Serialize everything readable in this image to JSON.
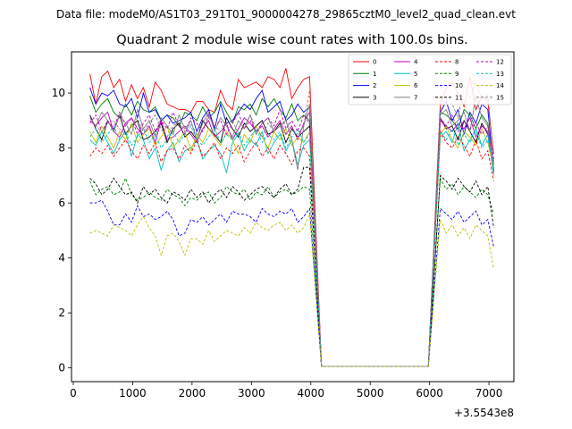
{
  "chart_data": {
    "type": "line",
    "suptitle": "Data file: modeM0/AS1T03_291T01_9000004278_29865cztM0_level2_quad_clean.evt",
    "title": "Quadrant 2 module wise count rates with 100.0s bins.",
    "xlabel": "",
    "ylabel": "",
    "x_offset_label": "+3.5543e8",
    "xlim": [
      -30,
      7420
    ],
    "ylim": [
      -0.5,
      11.5
    ],
    "xticks": [
      0,
      1000,
      2000,
      3000,
      4000,
      5000,
      6000,
      7000
    ],
    "yticks": [
      0,
      2,
      4,
      6,
      8,
      10
    ],
    "legend_position": "upper-right",
    "x": [
      280,
      380,
      480,
      580,
      680,
      780,
      880,
      980,
      1080,
      1180,
      1280,
      1380,
      1480,
      1580,
      1680,
      1780,
      1880,
      1980,
      2080,
      2180,
      2280,
      2380,
      2480,
      2580,
      2680,
      2780,
      2880,
      2980,
      3080,
      3180,
      3280,
      3380,
      3480,
      3580,
      3680,
      3780,
      3880,
      3980,
      4180,
      4280,
      4380,
      4480,
      4580,
      4680,
      4780,
      4880,
      4980,
      5080,
      5180,
      5280,
      5380,
      5480,
      5580,
      5680,
      5780,
      5880,
      5980,
      6180,
      6280,
      6380,
      6480,
      6580,
      6680,
      6780,
      6880,
      6980,
      7080
    ],
    "series": [
      {
        "name": "0",
        "color": "#ff0000",
        "style": "solid",
        "values": [
          10.7,
          9.6,
          10.6,
          10.8,
          10.2,
          10.5,
          9.7,
          10.3,
          9.8,
          10.2,
          9.5,
          10.4,
          10.1,
          9.6,
          9.5,
          9.4,
          9.4,
          9.3,
          9.7,
          9.7,
          9.4,
          9.3,
          10.1,
          9.6,
          9.4,
          10.5,
          10.2,
          10.3,
          10.4,
          10.2,
          10.6,
          10.5,
          10.2,
          10.9,
          9.8,
          10.2,
          10.5,
          10.6,
          0.05,
          0.05,
          0.05,
          0.05,
          0.05,
          0.05,
          0.05,
          0.05,
          0.05,
          0.05,
          0.05,
          0.05,
          0.05,
          0.05,
          0.05,
          0.05,
          0.05,
          0.05,
          0.05,
          9.6,
          10.2,
          10.4,
          10.0,
          9.5,
          10.6,
          9.4,
          9.9,
          9.7,
          7.8
        ]
      },
      {
        "name": "1",
        "color": "#008000",
        "style": "solid",
        "values": [
          9.9,
          9.3,
          9.6,
          9.8,
          9.3,
          9.1,
          9.6,
          9.2,
          9.7,
          9.4,
          9.3,
          9.5,
          9.0,
          9.2,
          9.1,
          8.8,
          9.3,
          9.2,
          9.0,
          9.5,
          9.1,
          9.3,
          9.7,
          9.3,
          8.9,
          9.5,
          9.4,
          9.6,
          9.2,
          9.8,
          9.5,
          9.8,
          9.4,
          9.1,
          9.6,
          9.0,
          9.2,
          9.0,
          0.05,
          0.05,
          0.05,
          0.05,
          0.05,
          0.05,
          0.05,
          0.05,
          0.05,
          0.05,
          0.05,
          0.05,
          0.05,
          0.05,
          0.05,
          0.05,
          0.05,
          0.05,
          0.05,
          9.3,
          9.2,
          9.0,
          8.7,
          9.4,
          9.2,
          8.7,
          9.2,
          8.9,
          7.4
        ]
      },
      {
        "name": "2",
        "color": "#0000ff",
        "style": "solid",
        "values": [
          10.2,
          9.6,
          10.0,
          9.9,
          10.1,
          9.6,
          9.5,
          9.8,
          9.1,
          10.0,
          9.3,
          9.4,
          9.0,
          9.2,
          8.9,
          9.0,
          9.1,
          9.3,
          8.6,
          9.1,
          9.4,
          8.7,
          9.6,
          8.9,
          9.0,
          9.3,
          9.6,
          9.4,
          9.8,
          10.1,
          9.3,
          9.5,
          9.7,
          9.0,
          9.2,
          9.6,
          9.3,
          9.5,
          0.05,
          0.05,
          0.05,
          0.05,
          0.05,
          0.05,
          0.05,
          0.05,
          0.05,
          0.05,
          0.05,
          0.05,
          0.05,
          0.05,
          0.05,
          0.05,
          0.05,
          0.05,
          0.05,
          9.3,
          9.7,
          9.0,
          9.4,
          8.5,
          9.3,
          8.9,
          9.6,
          9.4,
          7.2
        ]
      },
      {
        "name": "3",
        "color": "#000000",
        "style": "solid",
        "values": [
          9.2,
          8.7,
          8.3,
          9.0,
          8.6,
          9.2,
          8.5,
          8.8,
          9.0,
          8.3,
          8.4,
          8.6,
          8.9,
          8.2,
          8.7,
          8.9,
          8.4,
          8.6,
          8.3,
          9.0,
          8.7,
          8.5,
          8.2,
          9.1,
          8.7,
          8.4,
          8.9,
          8.6,
          8.8,
          9.0,
          8.5,
          8.6,
          8.9,
          8.2,
          8.7,
          8.4,
          8.6,
          8.8,
          0.05,
          0.05,
          0.05,
          0.05,
          0.05,
          0.05,
          0.05,
          0.05,
          0.05,
          0.05,
          0.05,
          0.05,
          0.05,
          0.05,
          0.05,
          0.05,
          0.05,
          0.05,
          0.05,
          9.1,
          8.7,
          8.8,
          8.3,
          9.0,
          8.6,
          8.2,
          8.9,
          8.5,
          7.1
        ]
      },
      {
        "name": "4",
        "color": "#bf00bf",
        "style": "solid",
        "values": [
          9.0,
          8.8,
          9.1,
          9.3,
          8.6,
          8.4,
          8.9,
          9.1,
          8.7,
          8.5,
          8.8,
          8.2,
          9.0,
          8.3,
          8.4,
          8.6,
          8.8,
          8.5,
          8.2,
          8.7,
          9.0,
          8.4,
          8.6,
          8.9,
          8.3,
          8.7,
          9.1,
          8.9,
          8.6,
          8.8,
          8.4,
          8.7,
          9.0,
          8.5,
          8.8,
          8.3,
          8.9,
          9.3,
          0.05,
          0.05,
          0.05,
          0.05,
          0.05,
          0.05,
          0.05,
          0.05,
          0.05,
          0.05,
          0.05,
          0.05,
          0.05,
          0.05,
          0.05,
          0.05,
          0.05,
          0.05,
          0.05,
          9.0,
          8.8,
          8.6,
          8.9,
          8.7,
          9.1,
          8.4,
          8.8,
          8.6,
          7.5
        ]
      },
      {
        "name": "5",
        "color": "#00bfbf",
        "style": "solid",
        "values": [
          8.3,
          8.1,
          8.6,
          8.2,
          7.8,
          8.3,
          8.6,
          7.7,
          8.5,
          8.3,
          7.6,
          8.0,
          7.2,
          7.9,
          8.2,
          7.5,
          7.9,
          8.0,
          8.3,
          7.6,
          7.9,
          8.1,
          7.8,
          7.1,
          8.2,
          8.5,
          7.9,
          8.3,
          8.1,
          8.6,
          7.8,
          8.2,
          8.5,
          7.9,
          8.3,
          7.4,
          8.1,
          8.3,
          0.05,
          0.05,
          0.05,
          0.05,
          0.05,
          0.05,
          0.05,
          0.05,
          0.05,
          0.05,
          0.05,
          0.05,
          0.05,
          0.05,
          0.05,
          0.05,
          0.05,
          0.05,
          0.05,
          8.4,
          8.6,
          8.2,
          8.9,
          7.9,
          8.3,
          8.7,
          8.1,
          8.5,
          7.0
        ]
      },
      {
        "name": "6",
        "color": "#bfbf00",
        "style": "solid",
        "values": [
          8.6,
          8.2,
          8.8,
          8.4,
          8.0,
          8.6,
          8.3,
          8.9,
          8.2,
          8.5,
          8.7,
          8.1,
          8.4,
          8.8,
          8.0,
          8.3,
          8.6,
          7.9,
          8.5,
          8.2,
          8.7,
          8.4,
          8.1,
          8.6,
          8.3,
          7.8,
          8.5,
          8.2,
          8.8,
          8.4,
          8.0,
          8.6,
          8.3,
          8.7,
          8.1,
          8.4,
          8.2,
          8.6,
          0.05,
          0.05,
          0.05,
          0.05,
          0.05,
          0.05,
          0.05,
          0.05,
          0.05,
          0.05,
          0.05,
          0.05,
          0.05,
          0.05,
          0.05,
          0.05,
          0.05,
          0.05,
          0.05,
          8.5,
          8.8,
          8.3,
          8.0,
          8.6,
          8.4,
          8.1,
          8.7,
          8.2,
          7.3
        ]
      },
      {
        "name": "7",
        "color": "#808080",
        "style": "solid",
        "values": [
          9.1,
          8.8,
          9.3,
          9.0,
          8.6,
          9.2,
          8.9,
          8.5,
          9.4,
          8.7,
          9.0,
          8.4,
          9.1,
          8.8,
          8.5,
          9.2,
          8.7,
          9.0,
          8.3,
          8.9,
          9.3,
          8.6,
          9.1,
          8.8,
          8.4,
          9.0,
          8.7,
          9.2,
          8.5,
          8.9,
          9.1,
          8.6,
          8.8,
          9.0,
          8.3,
          7.2,
          8.8,
          9.6,
          0.05,
          0.05,
          0.05,
          0.05,
          0.05,
          0.05,
          0.05,
          0.05,
          0.05,
          0.05,
          0.05,
          0.05,
          0.05,
          0.05,
          0.05,
          0.05,
          0.05,
          0.05,
          0.05,
          9.2,
          9.4,
          8.8,
          9.0,
          9.3,
          8.6,
          9.9,
          9.1,
          8.8,
          7.4
        ]
      },
      {
        "name": "8",
        "color": "#ff0000",
        "style": "dashed",
        "values": [
          7.7,
          8.0,
          7.8,
          8.1,
          7.7,
          8.0,
          8.3,
          7.9,
          7.6,
          8.1,
          7.8,
          8.2,
          7.5,
          7.9,
          8.0,
          7.6,
          8.1,
          7.8,
          8.3,
          7.7,
          7.9,
          8.2,
          7.6,
          8.0,
          7.8,
          8.1,
          7.5,
          7.9,
          8.2,
          7.7,
          8.0,
          7.6,
          8.1,
          7.8,
          7.4,
          7.9,
          8.0,
          7.7,
          0.05,
          0.05,
          0.05,
          0.05,
          0.05,
          0.05,
          0.05,
          0.05,
          0.05,
          0.05,
          0.05,
          0.05,
          0.05,
          0.05,
          0.05,
          0.05,
          0.05,
          0.05,
          0.05,
          8.6,
          8.2,
          8.0,
          8.4,
          8.1,
          7.7,
          8.3,
          7.6,
          7.9,
          6.8
        ]
      },
      {
        "name": "9",
        "color": "#008000",
        "style": "dashed",
        "values": [
          6.8,
          6.3,
          6.5,
          6.6,
          6.3,
          6.4,
          6.9,
          6.3,
          6.1,
          6.2,
          6.4,
          6.2,
          6.1,
          6.5,
          6.3,
          6.2,
          5.9,
          6.2,
          6.1,
          6.3,
          6.4,
          6.0,
          6.2,
          6.6,
          6.4,
          6.3,
          6.5,
          6.1,
          6.4,
          6.3,
          6.6,
          6.2,
          6.4,
          6.5,
          6.3,
          6.4,
          6.6,
          6.5,
          0.05,
          0.05,
          0.05,
          0.05,
          0.05,
          0.05,
          0.05,
          0.05,
          0.05,
          0.05,
          0.05,
          0.05,
          0.05,
          0.05,
          0.05,
          0.05,
          0.05,
          0.05,
          0.05,
          6.9,
          6.5,
          6.7,
          6.3,
          6.6,
          6.4,
          6.2,
          6.5,
          6.3,
          5.6
        ]
      },
      {
        "name": "10",
        "color": "#0000ff",
        "style": "dashed",
        "values": [
          6.0,
          6.0,
          6.1,
          5.7,
          5.2,
          5.2,
          5.6,
          5.3,
          5.9,
          5.5,
          5.6,
          5.4,
          5.5,
          5.7,
          5.4,
          4.8,
          4.9,
          5.4,
          5.3,
          5.5,
          5.2,
          5.4,
          5.6,
          5.3,
          5.7,
          5.6,
          5.6,
          5.5,
          5.3,
          5.8,
          5.6,
          5.5,
          5.7,
          5.6,
          5.8,
          5.3,
          5.5,
          5.8,
          0.05,
          0.05,
          0.05,
          0.05,
          0.05,
          0.05,
          0.05,
          0.05,
          0.05,
          0.05,
          0.05,
          0.05,
          0.05,
          0.05,
          0.05,
          0.05,
          0.05,
          0.05,
          0.05,
          5.8,
          5.6,
          5.4,
          5.7,
          5.3,
          5.5,
          5.7,
          5.2,
          5.4,
          4.4
        ]
      },
      {
        "name": "11",
        "color": "#000000",
        "style": "dashed",
        "values": [
          6.9,
          6.7,
          6.3,
          6.5,
          6.9,
          6.6,
          6.3,
          6.4,
          6.0,
          6.6,
          6.3,
          6.5,
          6.2,
          6.0,
          6.4,
          6.3,
          6.1,
          6.5,
          6.2,
          6.4,
          6.0,
          6.3,
          6.5,
          6.2,
          6.6,
          6.4,
          6.1,
          6.3,
          6.5,
          6.6,
          6.4,
          6.2,
          6.5,
          6.7,
          6.3,
          6.5,
          7.3,
          7.3,
          0.05,
          0.05,
          0.05,
          0.05,
          0.05,
          0.05,
          0.05,
          0.05,
          0.05,
          0.05,
          0.05,
          0.05,
          0.05,
          0.05,
          0.05,
          0.05,
          0.05,
          0.05,
          0.05,
          7.0,
          6.8,
          6.5,
          6.9,
          6.6,
          6.4,
          6.8,
          6.3,
          6.6,
          5.1
        ]
      },
      {
        "name": "12",
        "color": "#bf00bf",
        "style": "dashed",
        "values": [
          8.9,
          9.2,
          8.6,
          9.0,
          8.7,
          9.3,
          8.8,
          9.1,
          8.5,
          8.9,
          9.2,
          8.6,
          9.0,
          8.7,
          9.3,
          8.8,
          8.5,
          9.1,
          8.9,
          8.6,
          9.2,
          8.8,
          9.0,
          8.5,
          8.9,
          9.3,
          8.7,
          9.0,
          8.6,
          8.9,
          9.1,
          8.8,
          9.4,
          8.7,
          9.0,
          8.6,
          9.2,
          8.9,
          0.05,
          0.05,
          0.05,
          0.05,
          0.05,
          0.05,
          0.05,
          0.05,
          0.05,
          0.05,
          0.05,
          0.05,
          0.05,
          0.05,
          0.05,
          0.05,
          0.05,
          0.05,
          0.05,
          9.1,
          8.8,
          9.2,
          8.6,
          9.0,
          8.7,
          8.9,
          8.5,
          8.8,
          7.6
        ]
      },
      {
        "name": "13",
        "color": "#00bfbf",
        "style": "dashed",
        "values": [
          8.4,
          8.7,
          8.2,
          8.5,
          8.8,
          8.3,
          8.6,
          8.1,
          8.4,
          8.7,
          8.2,
          8.5,
          8.0,
          8.3,
          8.6,
          8.2,
          8.5,
          8.8,
          8.3,
          8.1,
          8.4,
          8.7,
          8.2,
          8.5,
          8.3,
          8.6,
          8.1,
          8.4,
          8.7,
          8.2,
          8.5,
          8.3,
          8.6,
          8.0,
          8.4,
          8.7,
          8.2,
          8.5,
          0.05,
          0.05,
          0.05,
          0.05,
          0.05,
          0.05,
          0.05,
          0.05,
          0.05,
          0.05,
          0.05,
          0.05,
          0.05,
          0.05,
          0.05,
          0.05,
          0.05,
          0.05,
          0.05,
          8.6,
          8.3,
          8.7,
          8.1,
          8.5,
          8.2,
          8.6,
          8.0,
          8.3,
          7.2
        ]
      },
      {
        "name": "14",
        "color": "#bfbf00",
        "style": "dashed",
        "values": [
          4.9,
          5.0,
          4.9,
          4.8,
          5.2,
          5.1,
          5.0,
          4.8,
          5.2,
          5.5,
          5.1,
          4.8,
          4.1,
          4.8,
          4.9,
          4.6,
          4.1,
          4.7,
          4.7,
          4.5,
          5.0,
          4.6,
          4.8,
          5.0,
          4.9,
          4.8,
          5.1,
          4.9,
          5.3,
          5.1,
          5.0,
          5.2,
          5.3,
          5.0,
          5.2,
          4.9,
          5.1,
          5.6,
          0.05,
          0.05,
          0.05,
          0.05,
          0.05,
          0.05,
          0.05,
          0.05,
          0.05,
          0.05,
          0.05,
          0.05,
          0.05,
          0.05,
          0.05,
          0.05,
          0.05,
          0.05,
          0.05,
          5.4,
          4.9,
          5.2,
          4.8,
          5.1,
          4.7,
          5.2,
          5.0,
          4.8,
          3.6
        ]
      },
      {
        "name": "15",
        "color": "#808080",
        "style": "dashed",
        "values": [
          9.1,
          8.8,
          8.6,
          8.9,
          9.0,
          8.7,
          8.5,
          8.8,
          9.1,
          8.6,
          8.9,
          9.2,
          8.7,
          8.4,
          8.8,
          9.0,
          8.6,
          8.9,
          8.5,
          8.7,
          9.1,
          8.8,
          8.6,
          8.9,
          9.0,
          8.5,
          8.8,
          9.2,
          8.7,
          8.4,
          8.9,
          8.6,
          8.8,
          9.0,
          8.7,
          8.5,
          8.8,
          10.1,
          0.05,
          0.05,
          0.05,
          0.05,
          0.05,
          0.05,
          0.05,
          0.05,
          0.05,
          0.05,
          0.05,
          0.05,
          0.05,
          0.05,
          0.05,
          0.05,
          0.05,
          0.05,
          0.05,
          9.4,
          9.9,
          9.6,
          9.1,
          10.3,
          9.8,
          10.5,
          9.7,
          10.0,
          7.6
        ]
      }
    ]
  }
}
